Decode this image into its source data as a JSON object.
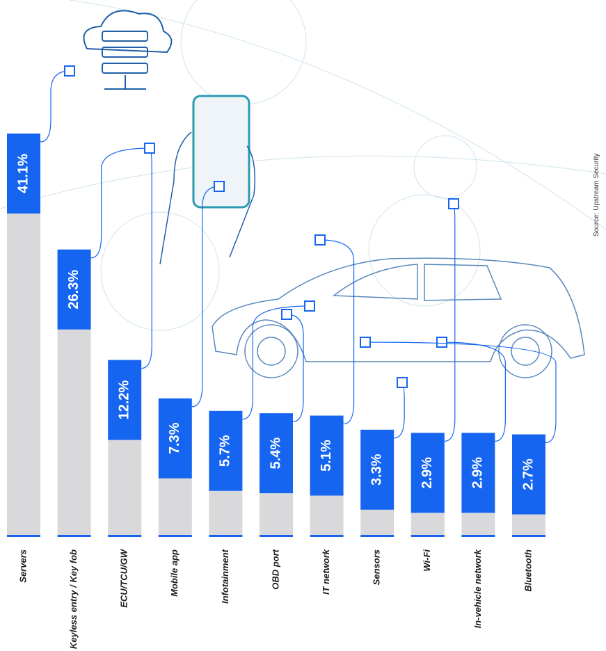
{
  "chart_data": {
    "type": "bar",
    "categories": [
      "Servers",
      "Keyless entry / Key fob",
      "ECU/TCU/GW",
      "Mobile app",
      "Infotainment",
      "OBD port",
      "IT network",
      "Sensors",
      "Wi-Fi",
      "In-vehicle network",
      "Bluetooth"
    ],
    "values": [
      41.1,
      26.3,
      12.2,
      7.3,
      5.7,
      5.4,
      5.1,
      3.3,
      2.9,
      2.9,
      2.7
    ],
    "value_labels": [
      "41.1%",
      "26.3%",
      "12.2%",
      "7.3%",
      "5.7%",
      "5.4%",
      "5.1%",
      "3.3%",
      "2.9%",
      "2.9%",
      "2.7%"
    ],
    "color": "#d9d9dc",
    "label_color": "#1565f0",
    "source": "Source: Upstream Security"
  }
}
